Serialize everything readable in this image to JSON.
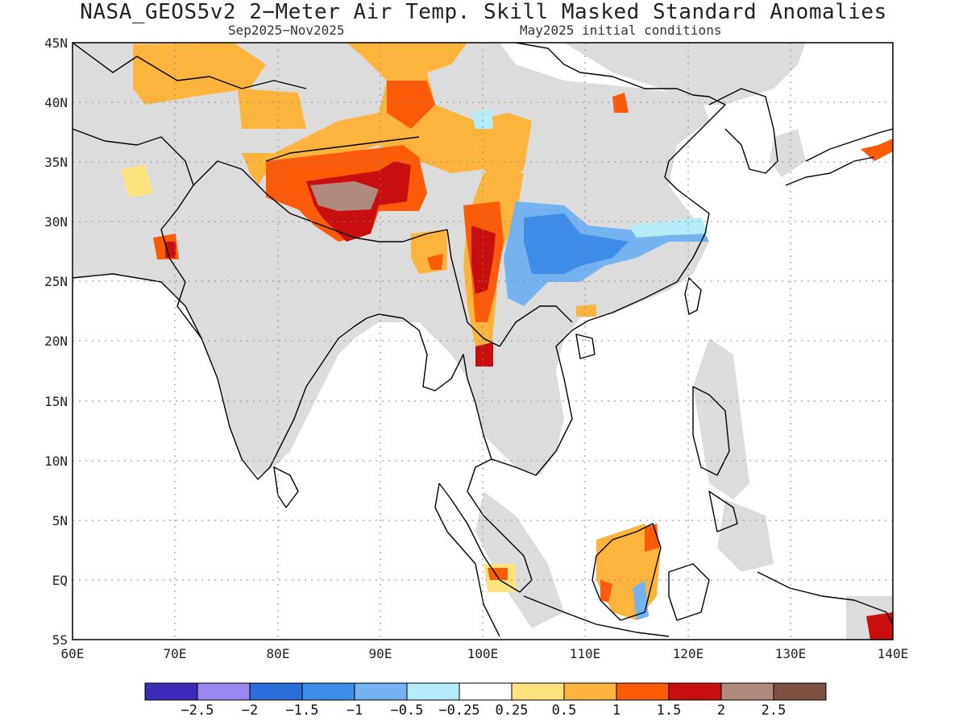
{
  "title": "NASA_GEOS5v2 2−Meter Air Temp. Skill Masked Standard Anomalies",
  "subtitle_left": "Sep2025−Nov2025",
  "subtitle_right": "May2025 initial conditions",
  "map": {
    "lon_range": [
      60,
      140
    ],
    "lat_range": [
      -5,
      45
    ],
    "lon_ticks": [
      "60E",
      "70E",
      "80E",
      "90E",
      "100E",
      "110E",
      "120E",
      "130E",
      "140E"
    ],
    "lat_ticks": [
      "45N",
      "40N",
      "35N",
      "30N",
      "25N",
      "20N",
      "15N",
      "10N",
      "5N",
      "EQ",
      "5S"
    ],
    "grid": "dotted",
    "mask_color": "#dcdcdc"
  },
  "colorbar": {
    "colors": [
      "#3c2ab8",
      "#9a86f0",
      "#2a6cd8",
      "#3c8ce8",
      "#74b2f0",
      "#b4ecf8",
      "#ffffff",
      "#fde27e",
      "#fdb43c",
      "#fc5c0a",
      "#c80e0e",
      "#b08a7e",
      "#7a5040"
    ],
    "labels": [
      "−2.5",
      "−2",
      "−1.5",
      "−1",
      "−0.5",
      "−0.25",
      "0.25",
      "0.5",
      "1",
      "1.5",
      "2",
      "2.5"
    ]
  }
}
